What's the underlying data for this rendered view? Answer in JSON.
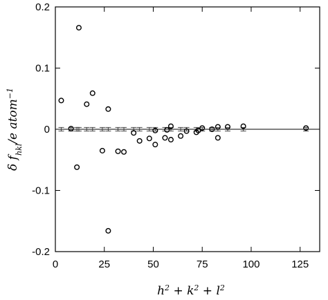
{
  "chart_data": {
    "type": "scatter",
    "title": "",
    "xlabel": "h² + k² + l²",
    "ylabel": "δ f_hkl / e atom⁻¹",
    "xlim": [
      0,
      135
    ],
    "ylim": [
      -0.2,
      0.2
    ],
    "x_ticks": [
      0,
      25,
      50,
      75,
      100,
      125
    ],
    "y_ticks": [
      -0.2,
      -0.1,
      0,
      0.1,
      0.2
    ],
    "y_tick_labels": [
      "-0.2",
      "-0.1",
      "0",
      "0.1",
      "0.2"
    ],
    "grid": false,
    "legend": "none",
    "reference_line_y": 0,
    "points": [
      {
        "x": 3,
        "y": 0.047
      },
      {
        "x": 8,
        "y": 0.001
      },
      {
        "x": 11,
        "y": -0.062
      },
      {
        "x": 12,
        "y": 0.166
      },
      {
        "x": 16,
        "y": 0.041
      },
      {
        "x": 19,
        "y": 0.059
      },
      {
        "x": 24,
        "y": -0.035
      },
      {
        "x": 27,
        "y": 0.033
      },
      {
        "x": 27,
        "y": -0.166
      },
      {
        "x": 32,
        "y": -0.036
      },
      {
        "x": 35,
        "y": -0.037
      },
      {
        "x": 40,
        "y": -0.006
      },
      {
        "x": 43,
        "y": -0.019
      },
      {
        "x": 48,
        "y": -0.015
      },
      {
        "x": 51,
        "y": -0.025
      },
      {
        "x": 51,
        "y": -0.002
      },
      {
        "x": 56,
        "y": -0.014
      },
      {
        "x": 57,
        "y": -0.001
      },
      {
        "x": 59,
        "y": 0.005
      },
      {
        "x": 59,
        "y": -0.017
      },
      {
        "x": 64,
        "y": -0.011
      },
      {
        "x": 67,
        "y": -0.003
      },
      {
        "x": 72,
        "y": -0.005
      },
      {
        "x": 73,
        "y": -0.002
      },
      {
        "x": 75,
        "y": 0.002
      },
      {
        "x": 80,
        "y": 0.0
      },
      {
        "x": 83,
        "y": 0.004
      },
      {
        "x": 83,
        "y": -0.014
      },
      {
        "x": 88,
        "y": 0.004
      },
      {
        "x": 96,
        "y": 0.005
      },
      {
        "x": 128,
        "y": 0.002
      }
    ],
    "error_bars": {
      "y_center": 0,
      "half_width": 0.003,
      "x": [
        3,
        8,
        11,
        12,
        16,
        19,
        24,
        27,
        32,
        35,
        40,
        43,
        48,
        51,
        56,
        59,
        64,
        67,
        72,
        75,
        80,
        83,
        88,
        96,
        128
      ]
    }
  }
}
